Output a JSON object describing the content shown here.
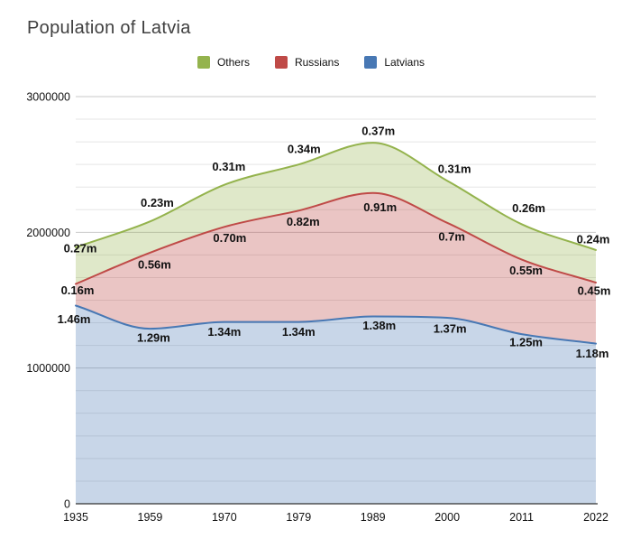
{
  "header": {
    "title": "Population of Latvia"
  },
  "legend": {
    "items": [
      {
        "label": "Others",
        "color": "#94b34d"
      },
      {
        "label": "Russians",
        "color": "#bf4a47"
      },
      {
        "label": "Latvians",
        "color": "#4878b4"
      }
    ]
  },
  "chart_data": {
    "type": "area",
    "stacked": true,
    "smoothed": true,
    "title": "Population of Latvia",
    "categories": [
      "1935",
      "1959",
      "1970",
      "1979",
      "1989",
      "2000",
      "2011",
      "2022"
    ],
    "series": [
      {
        "name": "Latvians",
        "color": "#4878b4",
        "fill_opacity": 0.3,
        "values_millions": [
          1.46,
          1.29,
          1.34,
          1.34,
          1.38,
          1.37,
          1.25,
          1.18
        ],
        "point_labels": [
          "1.46m",
          "1.29m",
          "1.34m",
          "1.34m",
          "1.38m",
          "1.37m",
          "1.25m",
          "1.18m"
        ]
      },
      {
        "name": "Russians",
        "color": "#bf4a47",
        "fill_opacity": 0.32,
        "values_millions": [
          0.16,
          0.56,
          0.7,
          0.82,
          0.91,
          0.7,
          0.55,
          0.45
        ],
        "point_labels": [
          "0.16m",
          "0.56m",
          "0.70m",
          "0.82m",
          "0.91m",
          "0.7m",
          "0.55m",
          "0.45m"
        ]
      },
      {
        "name": "Others",
        "color": "#94b34d",
        "fill_opacity": 0.3,
        "values_millions": [
          0.27,
          0.23,
          0.31,
          0.34,
          0.37,
          0.31,
          0.26,
          0.24
        ],
        "point_labels": [
          "0.27m",
          "0.23m",
          "0.31m",
          "0.34m",
          "0.37m",
          "0.31m",
          "0.26m",
          "0.24m"
        ]
      }
    ],
    "xlabel": "",
    "ylabel": "",
    "y_axis": {
      "min": 0,
      "max": 3000000,
      "tick_labels": [
        "0",
        "1000000",
        "2000000",
        "3000000"
      ],
      "minor_divisions_per_major": 6
    },
    "legend_position": "top",
    "legend_order": [
      "Others",
      "Russians",
      "Latvians"
    ],
    "grid": true,
    "colors": {
      "grid_minor": "#e5e5e5",
      "grid_major": "#c9c9c9",
      "axis_line": "#333333",
      "tick_text": "#111111",
      "data_label_text": "#111111"
    }
  }
}
